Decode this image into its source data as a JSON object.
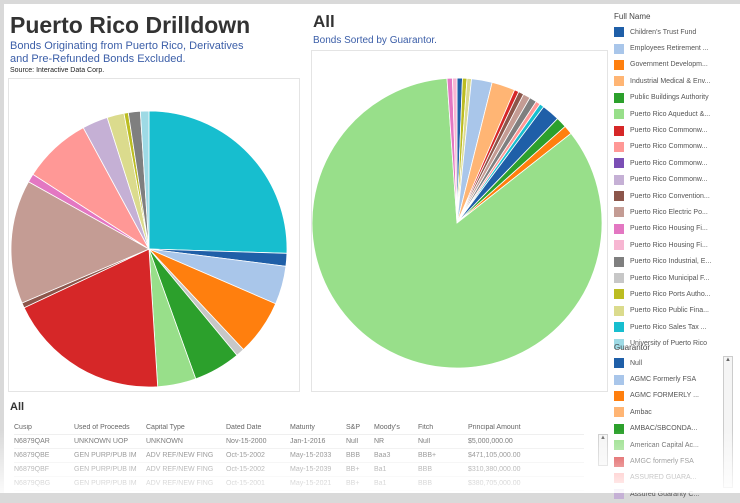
{
  "left": {
    "title": "Puerto Rico Drilldown",
    "subtitle": "Bonds Originating from Puerto Rico, Derivatives and Pre-Refunded Bonds Excluded.",
    "source": "Source: Interactive Data Corp."
  },
  "right": {
    "title": "All",
    "subtitle": "Bonds Sorted by Guarantor."
  },
  "legend_full_name": {
    "title": "Full Name",
    "items": [
      {
        "label": "Children's Trust Fund",
        "color": "#1f5fa8"
      },
      {
        "label": "Employees Retirement ...",
        "color": "#a9c6ea"
      },
      {
        "label": "Government Developm...",
        "color": "#ff7f0e"
      },
      {
        "label": "Industrial Medical & Env...",
        "color": "#ffb574"
      },
      {
        "label": "Public Buildings Authority",
        "color": "#2ca02c"
      },
      {
        "label": "Puerto Rico Aqueduct &...",
        "color": "#98df8a"
      },
      {
        "label": "Puerto Rico Commonw...",
        "color": "#d62728"
      },
      {
        "label": "Puerto Rico Commonw...",
        "color": "#ff9896"
      },
      {
        "label": "Puerto Rico Commonw...",
        "color": "#7b4fb5"
      },
      {
        "label": "Puerto Rico Commonw...",
        "color": "#c5b0d5"
      },
      {
        "label": "Puerto Rico Convention...",
        "color": "#8c564b"
      },
      {
        "label": "Puerto Rico Electric Po...",
        "color": "#c49c94"
      },
      {
        "label": "Puerto Rico Housing Fi...",
        "color": "#e377c2"
      },
      {
        "label": "Puerto Rico Housing Fi...",
        "color": "#f7b6d2"
      },
      {
        "label": "Puerto Rico Industrial, E...",
        "color": "#7f7f7f"
      },
      {
        "label": "Puerto Rico Municipal F...",
        "color": "#c7c7c7"
      },
      {
        "label": "Puerto Rico Ports Autho...",
        "color": "#bcbd22"
      },
      {
        "label": "Puerto Rico Public Fina...",
        "color": "#dbdb8d"
      },
      {
        "label": "Puerto Rico Sales Tax ...",
        "color": "#17becf"
      },
      {
        "label": "University of Puerto Rico",
        "color": "#9edae5"
      }
    ]
  },
  "legend_guarantor": {
    "title": "Guarantor",
    "items": [
      {
        "label": "Null",
        "color": "#1f5fa8"
      },
      {
        "label": "AGMC Formerly FSA",
        "color": "#a9c6ea"
      },
      {
        "label": "AGMC FORMERLY ...",
        "color": "#ff7f0e"
      },
      {
        "label": "Ambac",
        "color": "#ffb574"
      },
      {
        "label": "AMBAC/SBCONDA...",
        "color": "#2ca02c"
      },
      {
        "label": "American Capital Ac...",
        "color": "#98df8a"
      },
      {
        "label": "AMGC formerly FSA",
        "color": "#d62728"
      },
      {
        "label": "ASSURED GUARA...",
        "color": "#ff9896"
      },
      {
        "label": "Assured Guaranty C...",
        "color": "#c5b0d5"
      }
    ]
  },
  "table": {
    "title": "All",
    "columns": [
      "Cusip",
      "Used of Proceeds",
      "Capital Type",
      "Dated Date",
      "Maturity",
      "S&P",
      "Moody's",
      "Fitch",
      "Principal Amount"
    ],
    "rows": [
      [
        "N6879QAR",
        "UNKNOWN UOP",
        "UNKNOWN",
        "Nov-15-2000",
        "Jan-1-2016",
        "Null",
        "NR",
        "Null",
        "$5,000,000.00"
      ],
      [
        "N6879QBE",
        "GEN PURP/PUB IM",
        "ADV REF/NEW FING",
        "Oct-15-2002",
        "May-15-2033",
        "BBB",
        "Baa3",
        "BBB+",
        "$471,105,000.00"
      ],
      [
        "N6879QBF",
        "GEN PURP/PUB IM",
        "ADV REF/NEW FING",
        "Oct-15-2002",
        "May-15-2039",
        "BB+",
        "Ba1",
        "BBB",
        "$310,380,000.00"
      ],
      [
        "N6879QBG",
        "GEN PURP/PUB IM",
        "ADV REF/NEW FING",
        "Oct-15-2001",
        "May-15-2021",
        "BB+",
        "Ba1",
        "BBB",
        "$380,705,000.00"
      ]
    ]
  },
  "chart_data": [
    {
      "type": "pie",
      "title": "Puerto Rico Drilldown",
      "slices": [
        {
          "label": "Puerto Rico Sales Tax ...",
          "value": 25.5,
          "color": "#17becf"
        },
        {
          "label": "Children's Trust Fund",
          "value": 1.5,
          "color": "#1f5fa8"
        },
        {
          "label": "Employees Retirement ...",
          "value": 4.5,
          "color": "#a9c6ea"
        },
        {
          "label": "Government Developm...",
          "value": 6.5,
          "color": "#ff7f0e"
        },
        {
          "label": "Puerto Rico Municipal F...",
          "value": 1,
          "color": "#c7c7c7"
        },
        {
          "label": "Public Buildings Authority",
          "value": 5.5,
          "color": "#2ca02c"
        },
        {
          "label": "Puerto Rico Aqueduct &...",
          "value": 4.5,
          "color": "#98df8a"
        },
        {
          "label": "Puerto Rico Commonw...",
          "value": 19,
          "color": "#d62728"
        },
        {
          "label": "Puerto Rico Convention...",
          "value": 0.6,
          "color": "#8c564b"
        },
        {
          "label": "Puerto Rico Electric Po...",
          "value": 14.5,
          "color": "#c49c94"
        },
        {
          "label": "Puerto Rico Housing Fi...",
          "value": 1,
          "color": "#e377c2"
        },
        {
          "label": "Puerto Rico Commonw...",
          "value": 8,
          "color": "#ff9896"
        },
        {
          "label": "Puerto Rico Commonw...",
          "value": 3,
          "color": "#c5b0d5"
        },
        {
          "label": "Puerto Rico Public Fina...",
          "value": 2,
          "color": "#dbdb8d"
        },
        {
          "label": "Puerto Rico Ports Autho...",
          "value": 0.5,
          "color": "#bcbd22"
        },
        {
          "label": "Puerto Rico Industrial, E...",
          "value": 1.4,
          "color": "#7f7f7f"
        },
        {
          "label": "University of Puerto Rico",
          "value": 1,
          "color": "#9edae5"
        }
      ]
    },
    {
      "type": "pie",
      "title": "All",
      "slices": [
        {
          "label": "",
          "value": 0.6,
          "color": "#1f5fa8"
        },
        {
          "label": "",
          "value": 0.5,
          "color": "#bcbd22"
        },
        {
          "label": "",
          "value": 0.5,
          "color": "#dbdb8d"
        },
        {
          "label": "",
          "value": 2.3,
          "color": "#a9c6ea"
        },
        {
          "label": "",
          "value": 2.6,
          "color": "#ffb574"
        },
        {
          "label": "",
          "value": 0.5,
          "color": "#d62728"
        },
        {
          "label": "",
          "value": 0.6,
          "color": "#8c564b"
        },
        {
          "label": "",
          "value": 0.8,
          "color": "#c49c94"
        },
        {
          "label": "",
          "value": 0.8,
          "color": "#7f7f7f"
        },
        {
          "label": "",
          "value": 0.5,
          "color": "#ff9896"
        },
        {
          "label": "",
          "value": 0.5,
          "color": "#17becf"
        },
        {
          "label": "",
          "value": 2,
          "color": "#1f5fa8"
        },
        {
          "label": "",
          "value": 1.2,
          "color": "#2ca02c"
        },
        {
          "label": "",
          "value": 1,
          "color": "#ff7f0e"
        },
        {
          "label": "",
          "value": 84.5,
          "color": "#98df8a"
        },
        {
          "label": "",
          "value": 0.6,
          "color": "#e377c2"
        },
        {
          "label": "",
          "value": 0.5,
          "color": "#f7b6d2"
        }
      ]
    }
  ]
}
